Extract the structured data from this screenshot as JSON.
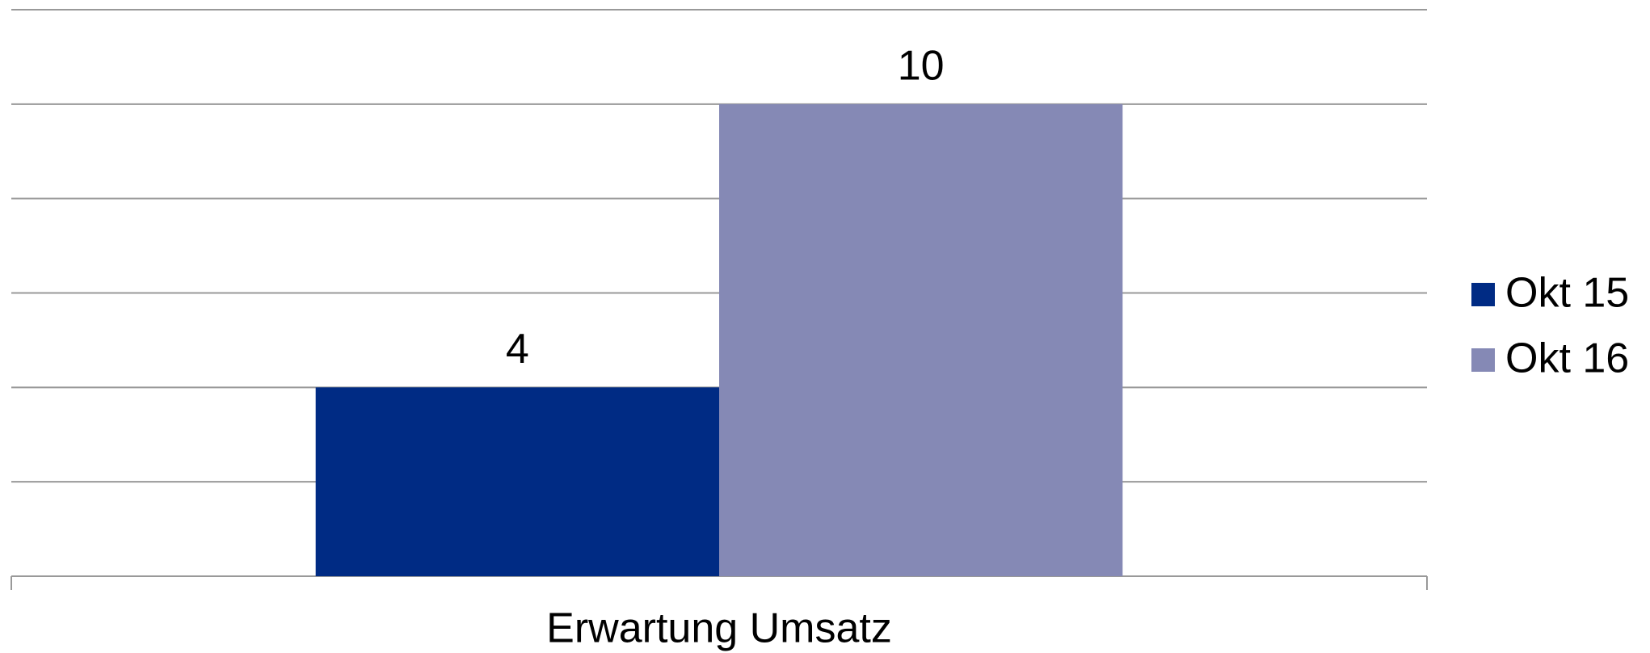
{
  "chart_data": {
    "type": "bar",
    "categories": [
      "Erwartung Umsatz"
    ],
    "series": [
      {
        "name": "Okt 15",
        "color": "#002b84",
        "values": [
          4
        ]
      },
      {
        "name": "Okt 16",
        "color": "#8589b5",
        "values": [
          10
        ]
      }
    ],
    "ylim": [
      0,
      12
    ],
    "yticks": [
      0,
      2,
      4,
      6,
      8,
      10,
      12
    ],
    "grid": true,
    "legend": "right"
  }
}
